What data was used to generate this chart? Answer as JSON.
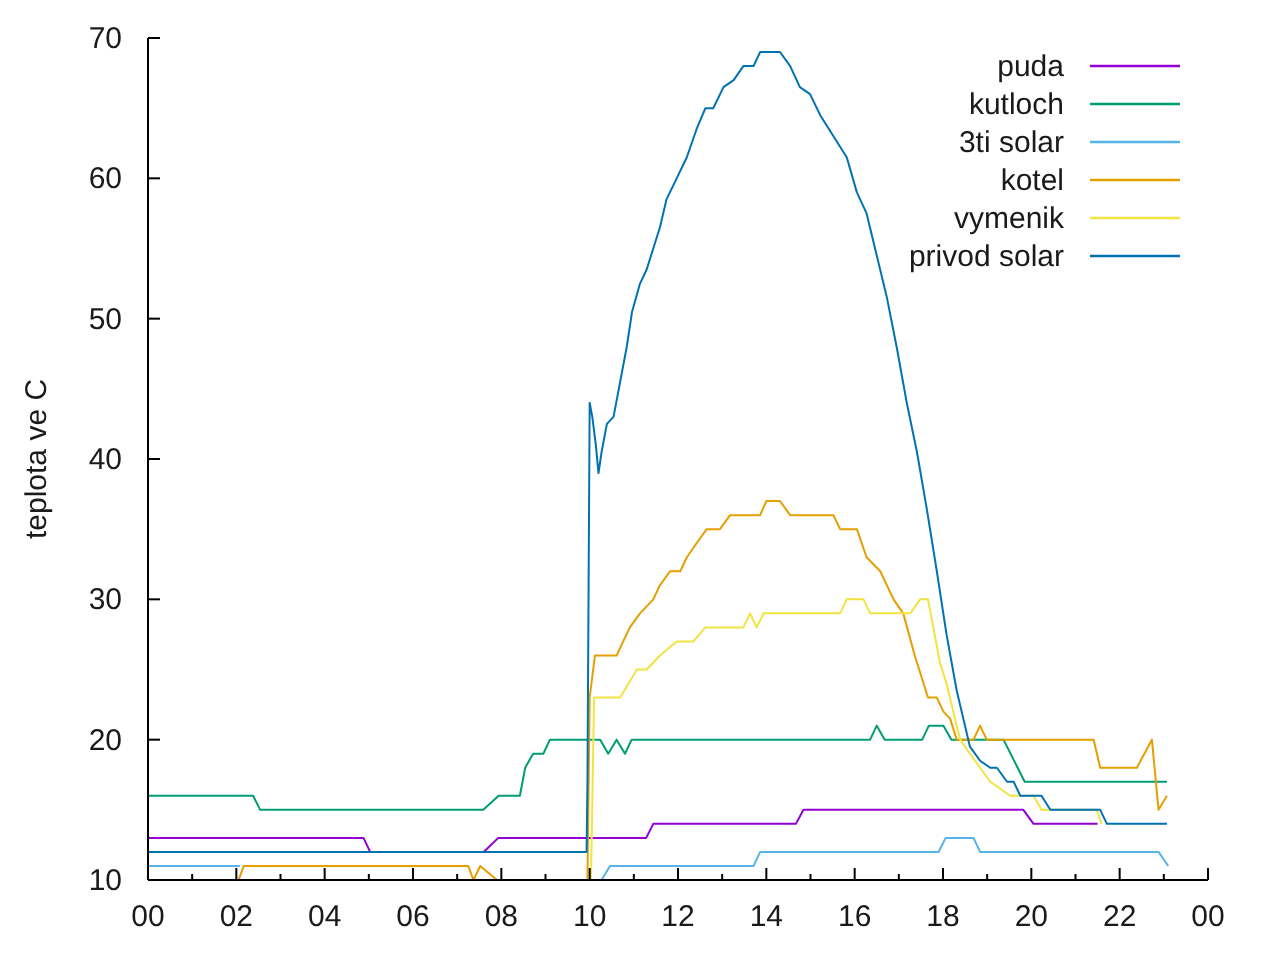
{
  "chart_data": {
    "type": "line",
    "ylabel": "teplota ve C",
    "xlim": [
      0,
      24
    ],
    "xticks": [
      {
        "value": 0,
        "label": "00"
      },
      {
        "value": 1,
        "label": null
      },
      {
        "value": 2,
        "label": "02"
      },
      {
        "value": 3,
        "label": null
      },
      {
        "value": 4,
        "label": "04"
      },
      {
        "value": 5,
        "label": null
      },
      {
        "value": 6,
        "label": "06"
      },
      {
        "value": 7,
        "label": null
      },
      {
        "value": 8,
        "label": "08"
      },
      {
        "value": 9,
        "label": null
      },
      {
        "value": 10,
        "label": "10"
      },
      {
        "value": 11,
        "label": null
      },
      {
        "value": 12,
        "label": "12"
      },
      {
        "value": 13,
        "label": null
      },
      {
        "value": 14,
        "label": "14"
      },
      {
        "value": 15,
        "label": null
      },
      {
        "value": 16,
        "label": "16"
      },
      {
        "value": 17,
        "label": null
      },
      {
        "value": 18,
        "label": "18"
      },
      {
        "value": 19,
        "label": null
      },
      {
        "value": 20,
        "label": "20"
      },
      {
        "value": 21,
        "label": null
      },
      {
        "value": 22,
        "label": "22"
      },
      {
        "value": 23,
        "label": null
      },
      {
        "value": 24,
        "label": "00"
      }
    ],
    "ylim": [
      10,
      70
    ],
    "yticks": [
      10,
      20,
      30,
      40,
      50,
      60,
      70
    ],
    "legend": "top right",
    "line_style": "solid",
    "series": [
      {
        "name": "puda",
        "color": "#9400d3",
        "x": [
          0,
          4.88,
          5.03,
          7.6,
          7.93,
          11.28,
          11.44,
          14.67,
          14.84,
          19.82,
          20.05,
          21.5
        ],
        "values": [
          13,
          13,
          12,
          12,
          13,
          13,
          14,
          14,
          15,
          15,
          14,
          14
        ]
      },
      {
        "name": "kutloch",
        "color": "#009e73",
        "x": [
          0,
          2.38,
          2.54,
          7.59,
          7.94,
          8.42,
          8.54,
          8.72,
          8.95,
          9.1,
          10.24,
          10.42,
          10.61,
          10.8,
          10.95,
          16.35,
          16.5,
          16.68,
          17.53,
          17.68,
          18.01,
          18.19,
          19.37,
          19.85,
          23.07
        ],
        "values": [
          16,
          16,
          15,
          15,
          16,
          16,
          18,
          19,
          19,
          20,
          20,
          19,
          20,
          19,
          20,
          20,
          21,
          20,
          20,
          21,
          21,
          20,
          20,
          17,
          17
        ]
      },
      {
        "name": "3ti solar",
        "color": "#56b4e9",
        "x": [
          0,
          2.08,
          2.1,
          10.27,
          10.46,
          13.71,
          13.86,
          17.9,
          18.06,
          18.69,
          18.84,
          22.88,
          23.1
        ],
        "values": [
          11,
          11,
          null,
          10,
          11,
          11,
          12,
          12,
          13,
          13,
          12,
          12,
          11
        ]
      },
      {
        "name": "kotel",
        "color": "#e69f00",
        "x": [
          2.05,
          2.17,
          7.25,
          7.37,
          7.52,
          7.9,
          8.0,
          9.95,
          10.0,
          10.12,
          10.61,
          10.76,
          10.91,
          11.14,
          11.44,
          11.59,
          11.82,
          12.05,
          12.2,
          12.42,
          12.65,
          12.95,
          13.18,
          13.86,
          14.0,
          14.31,
          14.54,
          15.52,
          15.67,
          16.05,
          16.27,
          16.58,
          16.88,
          17.1,
          17.36,
          17.56,
          17.66,
          17.86,
          18.01,
          18.16,
          18.31,
          18.69,
          18.84,
          18.99,
          21.41,
          21.56,
          22.39,
          22.73,
          22.88,
          23.07
        ],
        "values": [
          10,
          11,
          11,
          10,
          11,
          10,
          null,
          10,
          23,
          26,
          26,
          27,
          28,
          29,
          30,
          31,
          32,
          32,
          33,
          34,
          35,
          35,
          36,
          36,
          37,
          37,
          36,
          36,
          35,
          35,
          33,
          32,
          30,
          29,
          26,
          24,
          23,
          23,
          22,
          21.5,
          20,
          20,
          21,
          20,
          20,
          18,
          18,
          20,
          15,
          16
        ]
      },
      {
        "name": "vymenik",
        "color": "#f0e442",
        "x": [
          10.03,
          10.1,
          10.69,
          11.07,
          11.29,
          11.59,
          11.97,
          12.35,
          12.62,
          13.48,
          13.63,
          13.78,
          13.94,
          15.67,
          15.82,
          16.2,
          16.35,
          17.26,
          17.48,
          17.66,
          17.78,
          17.93,
          18.08,
          18.27,
          18.39,
          18.61,
          18.84,
          19.07,
          19.3,
          19.52,
          20.05,
          20.23,
          21.48,
          21.59
        ],
        "values": [
          10,
          23,
          23,
          25,
          25,
          26,
          27,
          27,
          28,
          28,
          29,
          28,
          29,
          29,
          30,
          30,
          29,
          29,
          30,
          30,
          28,
          25.5,
          24,
          21.5,
          20,
          19,
          18,
          17,
          16.5,
          16,
          16,
          15,
          15,
          14
        ]
      },
      {
        "name": "privod solar",
        "color": "#0072b2",
        "x": [
          0,
          9.93,
          9.95,
          10.0,
          10.06,
          10.14,
          10.2,
          10.27,
          10.39,
          10.54,
          10.69,
          10.84,
          10.96,
          11.14,
          11.29,
          11.44,
          11.59,
          11.74,
          11.97,
          12.2,
          12.42,
          12.62,
          12.8,
          13.03,
          13.26,
          13.48,
          13.71,
          13.86,
          14.31,
          14.54,
          14.76,
          14.99,
          15.22,
          15.52,
          15.82,
          16.05,
          16.27,
          16.5,
          16.73,
          16.95,
          17.18,
          17.41,
          17.63,
          17.86,
          18.08,
          18.31,
          18.46,
          18.61,
          18.84,
          19.07,
          19.22,
          19.45,
          19.6,
          19.75,
          20.23,
          20.43,
          21.56,
          21.71,
          23.07
        ],
        "values": [
          12,
          12,
          17,
          44,
          43,
          41,
          39,
          40.5,
          42.5,
          43,
          45.5,
          48,
          50.5,
          52.5,
          53.5,
          55,
          56.5,
          58.5,
          60,
          61.5,
          63.5,
          65,
          65,
          66.5,
          67,
          68,
          68,
          69,
          69,
          68,
          66.5,
          66,
          64.5,
          63,
          61.5,
          59,
          57.5,
          54.5,
          51.5,
          48,
          44,
          40.5,
          36.5,
          32,
          27.5,
          23.5,
          21.5,
          19.5,
          18.5,
          18,
          18,
          17,
          17,
          16,
          16,
          15,
          15,
          14,
          14
        ]
      }
    ]
  }
}
